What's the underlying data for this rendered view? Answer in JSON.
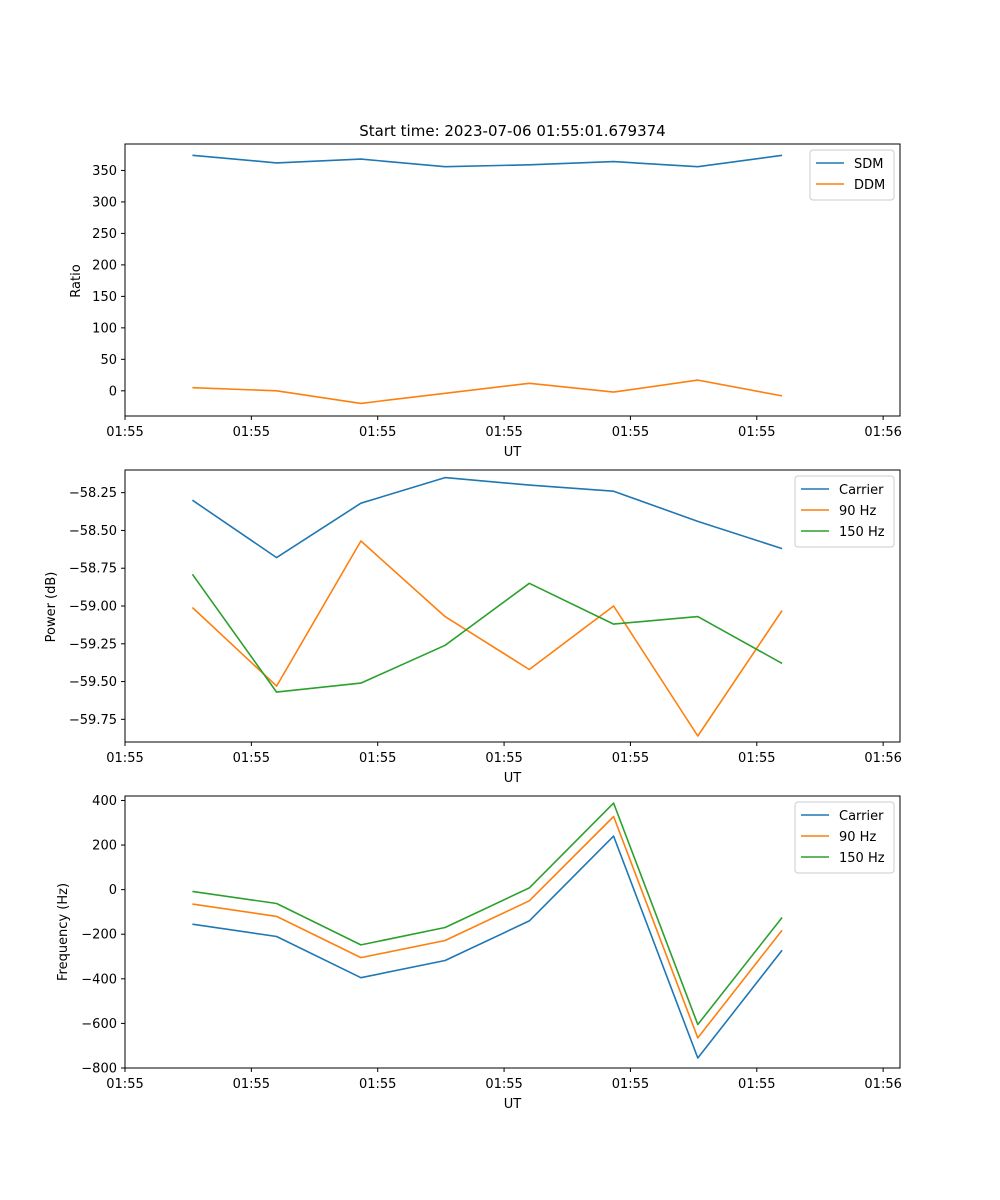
{
  "chart_data": [
    {
      "type": "line",
      "title": "Start time: 2023-07-06 01:55:01.679374",
      "xlabel": "UT",
      "ylabel": "Ratio",
      "xlim": [
        0,
        9.2
      ],
      "ylim": [
        -40,
        392
      ],
      "x": [
        0.8,
        1.8,
        2.8,
        3.8,
        4.8,
        5.8,
        6.8,
        7.8
      ],
      "xticks": [
        {
          "v": 0,
          "label": "01:55"
        },
        {
          "v": 1.5,
          "label": "01:55"
        },
        {
          "v": 3.0,
          "label": "01:55"
        },
        {
          "v": 4.5,
          "label": "01:55"
        },
        {
          "v": 6.0,
          "label": "01:55"
        },
        {
          "v": 7.5,
          "label": "01:55"
        },
        {
          "v": 9.0,
          "label": "01:56"
        }
      ],
      "yticks": [
        0,
        50,
        100,
        150,
        200,
        250,
        300,
        350
      ],
      "legend_position": "top-right",
      "series": [
        {
          "name": "SDM",
          "color": "#1f77b4",
          "values": [
            374,
            362,
            368,
            356,
            359,
            364,
            356,
            374
          ]
        },
        {
          "name": "DDM",
          "color": "#ff7f0e",
          "values": [
            5,
            0,
            -20,
            -4,
            12,
            -2,
            17,
            -8
          ]
        }
      ]
    },
    {
      "type": "line",
      "title": "",
      "xlabel": "UT",
      "ylabel": "Power (dB)",
      "xlim": [
        0,
        9.2
      ],
      "ylim": [
        -59.9,
        -58.1
      ],
      "x": [
        0.8,
        1.8,
        2.8,
        3.8,
        4.8,
        5.8,
        6.8,
        7.8
      ],
      "xticks": [
        {
          "v": 0,
          "label": "01:55"
        },
        {
          "v": 1.5,
          "label": "01:55"
        },
        {
          "v": 3.0,
          "label": "01:55"
        },
        {
          "v": 4.5,
          "label": "01:55"
        },
        {
          "v": 6.0,
          "label": "01:55"
        },
        {
          "v": 7.5,
          "label": "01:55"
        },
        {
          "v": 9.0,
          "label": "01:56"
        }
      ],
      "yticks": [
        -59.75,
        -59.5,
        -59.25,
        -59.0,
        -58.75,
        -58.5,
        -58.25
      ],
      "ytick_labels": [
        "−59.75",
        "−59.50",
        "−59.25",
        "−59.00",
        "−58.75",
        "−58.50",
        "−58.25"
      ],
      "legend_position": "top-right",
      "series": [
        {
          "name": "Carrier",
          "color": "#1f77b4",
          "values": [
            -58.3,
            -58.68,
            -58.32,
            -58.15,
            -58.2,
            -58.24,
            -58.44,
            -58.62
          ]
        },
        {
          "name": "90 Hz",
          "color": "#ff7f0e",
          "values": [
            -59.01,
            -59.53,
            -58.57,
            -59.07,
            -59.42,
            -59.0,
            -59.86,
            -59.03
          ]
        },
        {
          "name": "150 Hz",
          "color": "#2ca02c",
          "values": [
            -58.79,
            -59.57,
            -59.51,
            -59.26,
            -58.85,
            -59.12,
            -59.07,
            -59.38
          ]
        }
      ]
    },
    {
      "type": "line",
      "title": "",
      "xlabel": "UT",
      "ylabel": "Frequency (Hz)",
      "xlim": [
        0,
        9.2
      ],
      "ylim": [
        -800,
        420
      ],
      "x": [
        0.8,
        1.8,
        2.8,
        3.8,
        4.8,
        5.8,
        6.8,
        7.8
      ],
      "xticks": [
        {
          "v": 0,
          "label": "01:55"
        },
        {
          "v": 1.5,
          "label": "01:55"
        },
        {
          "v": 3.0,
          "label": "01:55"
        },
        {
          "v": 4.5,
          "label": "01:55"
        },
        {
          "v": 6.0,
          "label": "01:55"
        },
        {
          "v": 7.5,
          "label": "01:55"
        },
        {
          "v": 9.0,
          "label": "01:56"
        }
      ],
      "yticks": [
        -800,
        -600,
        -400,
        -200,
        0,
        200,
        400
      ],
      "ytick_labels": [
        "−800",
        "−600",
        "−400",
        "−200",
        "0",
        "200",
        "400"
      ],
      "legend_position": "top-right",
      "series": [
        {
          "name": "Carrier",
          "color": "#1f77b4",
          "values": [
            -155,
            -210,
            -395,
            -318,
            -140,
            240,
            -755,
            -272
          ]
        },
        {
          "name": "90 Hz",
          "color": "#ff7f0e",
          "values": [
            -65,
            -120,
            -305,
            -228,
            -50,
            328,
            -665,
            -182
          ]
        },
        {
          "name": "150 Hz",
          "color": "#2ca02c",
          "values": [
            -8,
            -62,
            -248,
            -170,
            8,
            388,
            -605,
            -125
          ]
        }
      ]
    }
  ]
}
